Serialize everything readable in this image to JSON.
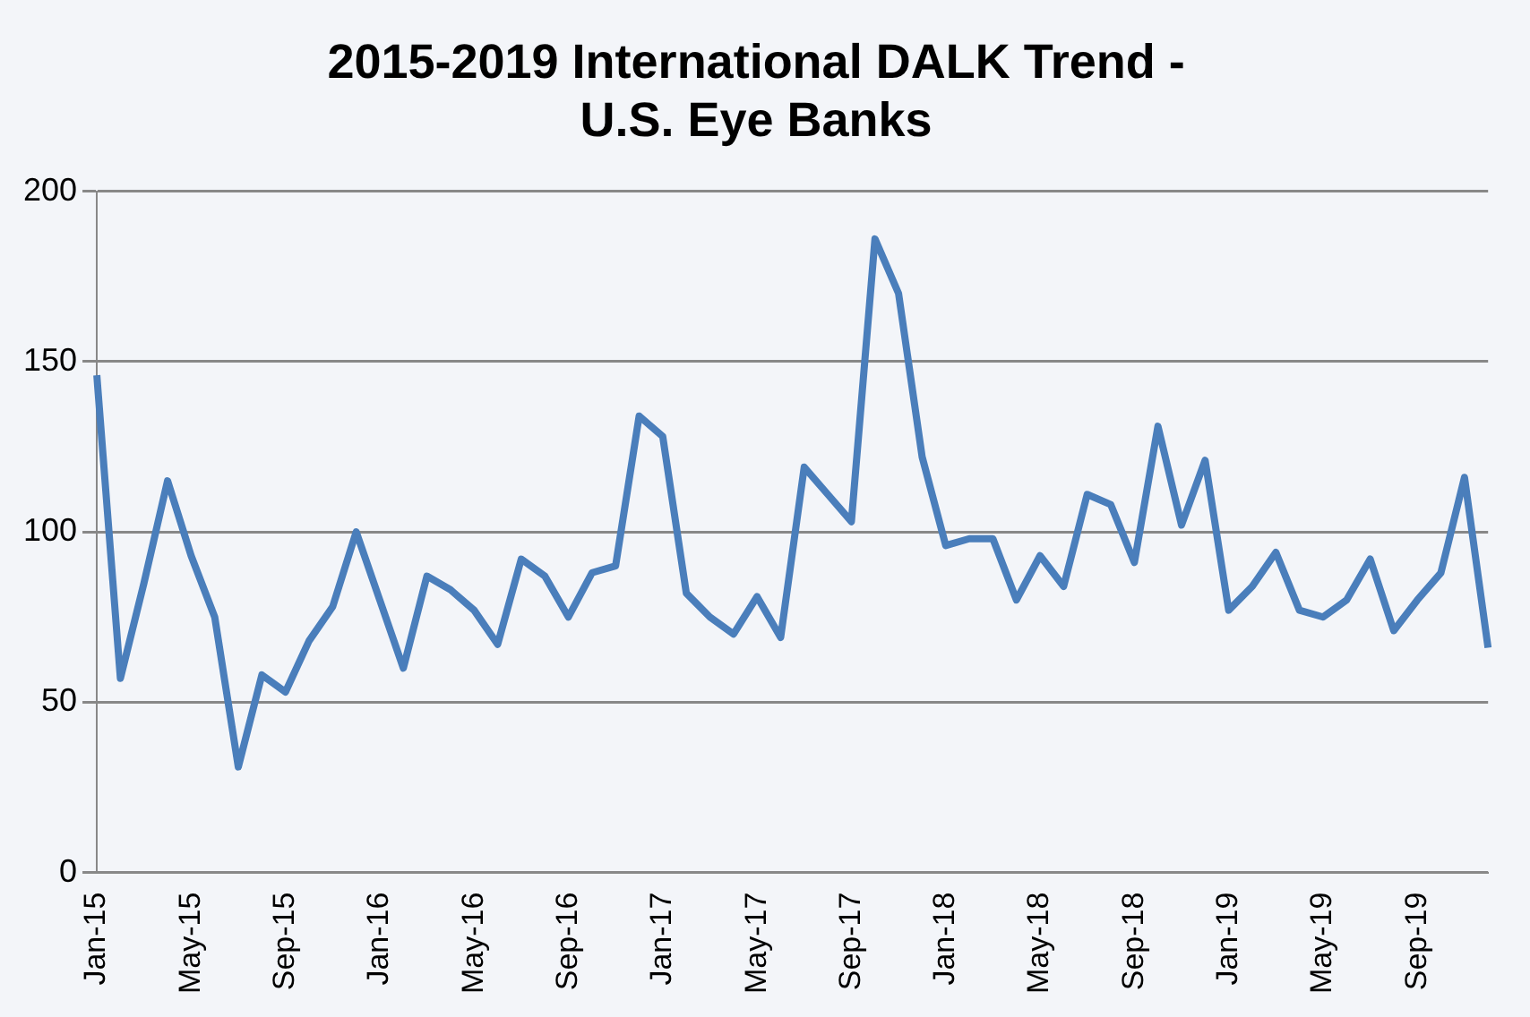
{
  "chart_data": {
    "type": "line",
    "title": [
      "2015-2019 International DALK Trend -",
      "U.S. Eye Banks"
    ],
    "categories": [
      "Jan-15",
      null,
      null,
      null,
      "May-15",
      null,
      null,
      null,
      "Sep-15",
      null,
      null,
      null,
      "Jan-16",
      null,
      null,
      null,
      "May-16",
      null,
      null,
      null,
      "Sep-16",
      null,
      null,
      null,
      "Jan-17",
      null,
      null,
      null,
      "May-17",
      null,
      null,
      null,
      "Sep-17",
      null,
      null,
      null,
      "Jan-18",
      null,
      null,
      null,
      "May-18",
      null,
      null,
      null,
      "Sep-18",
      null,
      null,
      null,
      "Jan-19",
      null,
      null,
      null,
      "May-19",
      null,
      null,
      null,
      "Sep-19",
      null,
      null,
      null
    ],
    "series": [
      {
        "color": "#4a7ebb",
        "values": [
          146,
          57,
          85,
          115,
          93,
          75,
          31,
          58,
          53,
          68,
          78,
          100,
          80,
          60,
          87,
          83,
          77,
          67,
          92,
          87,
          75,
          88,
          90,
          134,
          128,
          82,
          75,
          70,
          81,
          69,
          119,
          111,
          103,
          186,
          170,
          122,
          96,
          98,
          98,
          80,
          93,
          84,
          111,
          108,
          91,
          131,
          102,
          121,
          77,
          84,
          94,
          77,
          75,
          80,
          92,
          71,
          80,
          88,
          116,
          66
        ]
      }
    ],
    "ylim": [
      0,
      200
    ],
    "yticks": [
      0,
      50,
      100,
      150,
      200
    ],
    "grid": "y",
    "legend": false,
    "marker": "none",
    "line_style": "solid"
  }
}
